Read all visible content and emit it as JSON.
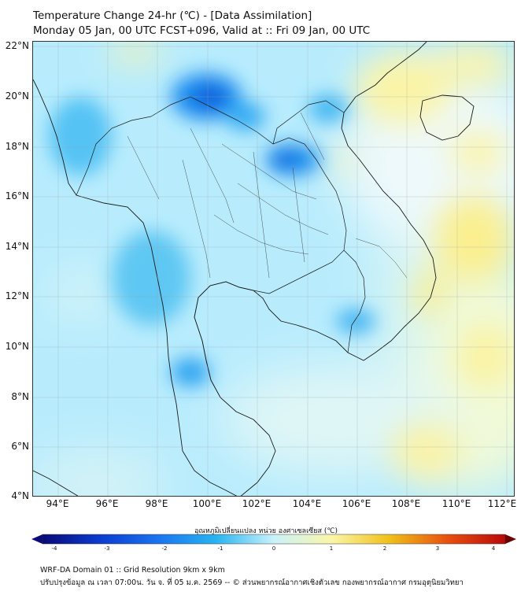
{
  "title": {
    "line1": "Temperature Change 24-hr (℃) - [Data Assimilation]",
    "line2": "Monday 05 Jan, 00 UTC FCST+096, Valid at :: Fri 09 Jan, 00 UTC"
  },
  "axes": {
    "lat_labels": [
      "22°N",
      "20°N",
      "18°N",
      "16°N",
      "14°N",
      "12°N",
      "10°N",
      "8°N",
      "6°N",
      "4°N"
    ],
    "lon_labels": [
      "94°E",
      "96°E",
      "98°E",
      "100°E",
      "102°E",
      "104°E",
      "106°E",
      "108°E",
      "110°E",
      "112°E"
    ],
    "lat_range": [
      4,
      22
    ],
    "lon_range": [
      93,
      112.3
    ]
  },
  "colorbar": {
    "title": "อุณหภูมิเปลี่ยนแปลง หน่วย องศาเซลเซียส (℃)",
    "ticks": [
      "-4",
      "-3",
      "-2",
      "-1",
      "0",
      "1",
      "2",
      "3",
      "4"
    ],
    "range": [
      -4,
      4
    ],
    "colors": [
      "#0a0a78",
      "#0b3ccf",
      "#1a74f0",
      "#28b4f0",
      "#c9f2fb",
      "#fbf6a8",
      "#f0c018",
      "#e85010",
      "#b80a0a"
    ]
  },
  "footer": {
    "line1": "WRF-DA Domain 01 :: Grid Resolution 9km x 9km",
    "line2": "ปรับปรุงข้อมูล ณ เวลา 07:00น. วัน จ. ที่ 05 ม.ค. 2569 -- © ส่วนพยากรณ์อากาศเชิงตัวเลข กองพยากรณ์อากาศ กรมอุตุนิยมวิทยา"
  }
}
